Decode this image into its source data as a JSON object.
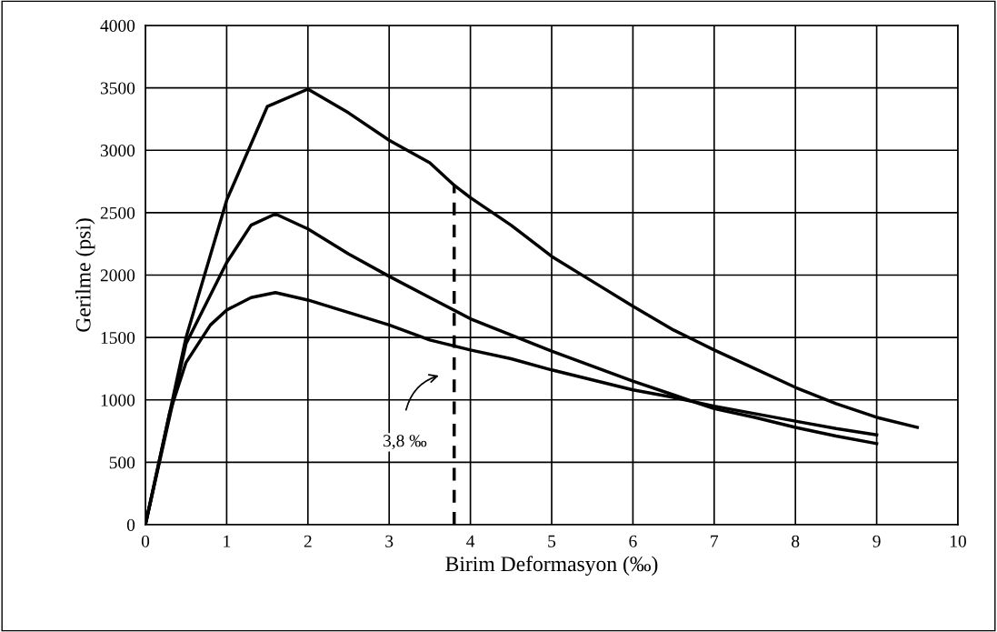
{
  "chart_data": {
    "type": "line",
    "xlabel": "Birim Deformasyon (‰)",
    "ylabel": "Gerilme (psi)",
    "xlim": [
      0,
      10
    ],
    "xticks": [
      0,
      1,
      2,
      3,
      4,
      5,
      6,
      7,
      8,
      9,
      10
    ],
    "ylim": [
      0,
      4000
    ],
    "yticks": [
      0,
      500,
      1000,
      1500,
      2000,
      2500,
      3000,
      3500,
      4000
    ],
    "grid": true,
    "marker": "none",
    "series": [
      {
        "color": "#000000",
        "line_style": "solid",
        "x": [
          0,
          0.5,
          1,
          1.5,
          2,
          2.5,
          3,
          3.5,
          3.8,
          4,
          4.5,
          5,
          5.5,
          6,
          6.5,
          7,
          7.5,
          8,
          8.5,
          9,
          9.5
        ],
        "values": [
          0,
          1500,
          2600,
          3350,
          3490,
          3300,
          3080,
          2900,
          2720,
          2620,
          2400,
          2150,
          1950,
          1750,
          1560,
          1400,
          1250,
          1100,
          970,
          860,
          780
        ]
      },
      {
        "color": "#000000",
        "line_style": "solid",
        "x": [
          0,
          0.5,
          1,
          1.3,
          1.6,
          2,
          2.5,
          3,
          3.5,
          4,
          4.5,
          5,
          5.5,
          6,
          6.5,
          7,
          7.5,
          8,
          8.5,
          9
        ],
        "values": [
          0,
          1450,
          2100,
          2400,
          2490,
          2370,
          2170,
          1990,
          1820,
          1650,
          1520,
          1390,
          1270,
          1150,
          1040,
          930,
          860,
          780,
          710,
          650
        ]
      },
      {
        "color": "#000000",
        "line_style": "solid",
        "x": [
          0,
          0.3,
          0.5,
          0.8,
          1,
          1.3,
          1.6,
          2,
          2.5,
          3,
          3.5,
          4,
          4.5,
          5,
          5.5,
          6,
          6.5,
          7,
          7.5,
          8,
          8.5,
          9
        ],
        "values": [
          0,
          900,
          1300,
          1600,
          1720,
          1820,
          1860,
          1800,
          1700,
          1600,
          1480,
          1400,
          1330,
          1240,
          1160,
          1080,
          1020,
          950,
          890,
          830,
          770,
          720
        ]
      },
      {
        "color": "#000000",
        "line_style": "dashed",
        "x": [
          3.8,
          3.8
        ],
        "values": [
          0,
          2720
        ]
      }
    ],
    "annotations": [
      "3,8 ‰"
    ]
  }
}
